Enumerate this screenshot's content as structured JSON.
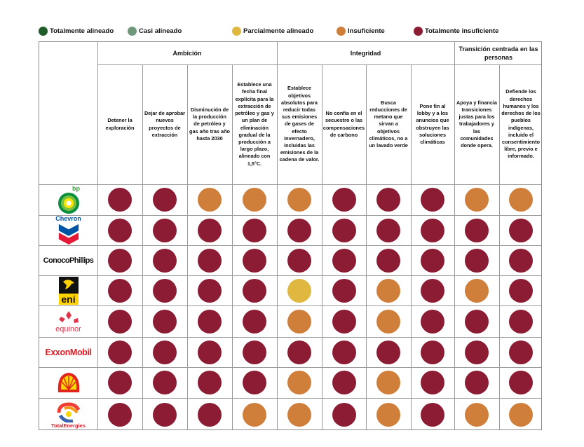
{
  "legend": [
    {
      "key": "TA",
      "label": "Totalmente alineado",
      "color": "#1f5c2a"
    },
    {
      "key": "CA",
      "label": "Casi alineado",
      "color": "#6f987a"
    },
    {
      "key": "PA",
      "label": "Parcialmente alineado",
      "color": "#e0b73f"
    },
    {
      "key": "I",
      "label": "Insuficiente",
      "color": "#cf7f3a"
    },
    {
      "key": "TI",
      "label": "Totalmente insuficiente",
      "color": "#8b1c33"
    }
  ],
  "groups": [
    {
      "label": "Ambición"
    },
    {
      "label": "Integridad"
    },
    {
      "label": "Transición centrada en las personas"
    }
  ],
  "columns": [
    "Detener la exploración",
    "Dejar de aprobar nuevos proyectos de extracción",
    "Disminución de la producción de petróleo y gas año tras año hasta 2030",
    "Establece una fecha final explícita para la extracción de petróleo y gas y un plan de eliminación gradual de la producción a largo plazo, alineado con 1,5°C.",
    "Establece objetivos absolutos para reducir todas sus emisiones de gases de efecto invernadero, incluidas las emisiones de la cadena de valor.",
    "No confía en el secuestro o las compensaciones de carbono",
    "Busca reducciones de metano que sirvan a objetivos climáticos, no a un lavado verde",
    "Pone fin al lobby y a los anuncios que obstruyen las soluciones climáticas",
    "Apoya y financia transiciones justas para los trabajadores y las comunidades donde opera.",
    "Defiende los derechos humanos y los derechos de los pueblos indígenas, incluido el consentimiento libre, previo e informado."
  ],
  "companies": [
    {
      "name": "bp",
      "logo_text": "bp"
    },
    {
      "name": "Chevron",
      "logo_text": "Chevron"
    },
    {
      "name": "ConocoPhillips",
      "logo_text": "ConocoPhillips"
    },
    {
      "name": "eni",
      "logo_text": "eni"
    },
    {
      "name": "equinor",
      "logo_text": "equinor"
    },
    {
      "name": "ExxonMobil",
      "logo_text": "ExxonMobil"
    },
    {
      "name": "Shell",
      "logo_text": ""
    },
    {
      "name": "TotalEnergies",
      "logo_text": "TotalEnergies"
    }
  ],
  "chart_data": {
    "type": "table",
    "title": "",
    "rows": [
      "bp",
      "Chevron",
      "ConocoPhillips",
      "eni",
      "equinor",
      "ExxonMobil",
      "Shell",
      "TotalEnergies"
    ],
    "columns": [
      "Detener la exploración",
      "Dejar de aprobar nuevos proyectos de extracción",
      "Disminución de la producción de petróleo y gas año tras año hasta 2030",
      "Fecha final explícita y plan de eliminación gradual 1,5°C",
      "Objetivos absolutos de reducción de emisiones",
      "No confía en el secuestro o compensaciones",
      "Reducciones de metano",
      "Fin al lobby y anuncios",
      "Transiciones justas",
      "Derechos humanos y de pueblos indígenas"
    ],
    "ratings": [
      [
        "TI",
        "TI",
        "I",
        "I",
        "I",
        "TI",
        "TI",
        "TI",
        "I",
        "I"
      ],
      [
        "TI",
        "TI",
        "TI",
        "TI",
        "TI",
        "TI",
        "TI",
        "TI",
        "TI",
        "TI"
      ],
      [
        "TI",
        "TI",
        "TI",
        "TI",
        "TI",
        "TI",
        "TI",
        "TI",
        "TI",
        "TI"
      ],
      [
        "TI",
        "TI",
        "TI",
        "TI",
        "PA",
        "TI",
        "I",
        "TI",
        "I",
        "TI"
      ],
      [
        "TI",
        "TI",
        "TI",
        "TI",
        "I",
        "TI",
        "I",
        "TI",
        "TI",
        "TI"
      ],
      [
        "TI",
        "TI",
        "TI",
        "TI",
        "TI",
        "TI",
        "TI",
        "TI",
        "TI",
        "TI"
      ],
      [
        "TI",
        "TI",
        "TI",
        "TI",
        "I",
        "TI",
        "I",
        "TI",
        "TI",
        "TI"
      ],
      [
        "TI",
        "TI",
        "TI",
        "I",
        "I",
        "TI",
        "I",
        "TI",
        "I",
        "I"
      ]
    ]
  }
}
